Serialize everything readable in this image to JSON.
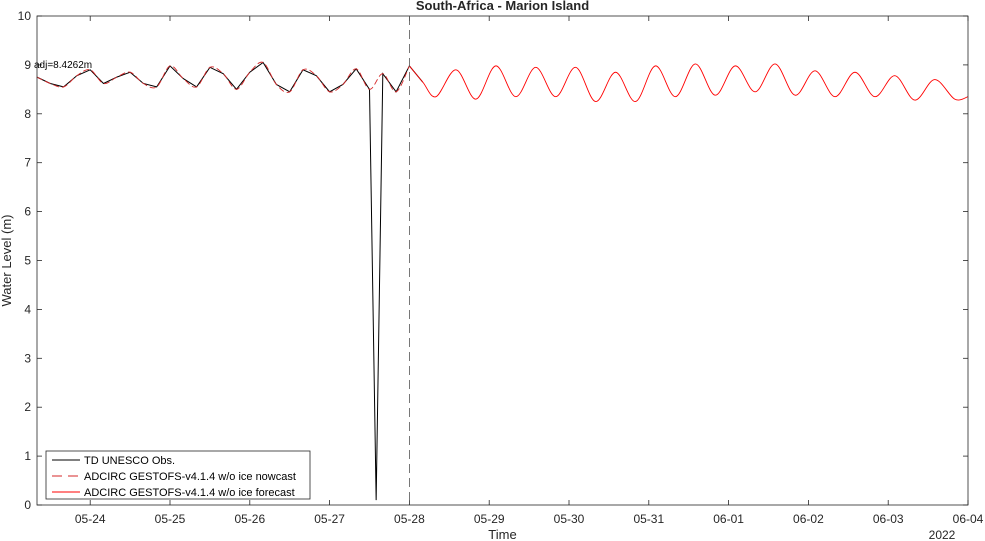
{
  "chart_data": {
    "type": "line",
    "title": "South-Africa - Marion Island",
    "xlabel": "Time",
    "ylabel": "Water Level (m)",
    "ylim": [
      0,
      10
    ],
    "yticks": [
      "0",
      "1",
      "2",
      "3",
      "4",
      "5",
      "6",
      "7",
      "8",
      "9",
      "10"
    ],
    "xlim": [
      "2022-05-23 08:00",
      "2022-06-04 00:00"
    ],
    "xticks": [
      "05-24",
      "05-25",
      "05-26",
      "05-27",
      "05-28",
      "05-29",
      "05-30",
      "05-31",
      "06-01",
      "06-02",
      "06-03",
      "06-04"
    ],
    "x_year_label": "2022",
    "annotation": "adj=8.4262m",
    "nowcast_forecast_boundary": "2022-05-28 00:00",
    "grid": false,
    "legend_position": "bottom-left",
    "series": [
      {
        "name": "TD UNESCO Obs.",
        "color": "#000000",
        "style": "solid",
        "x": [
          "05-23 08:00",
          "05-23 12:00",
          "05-23 16:00",
          "05-23 20:00",
          "05-24 00:00",
          "05-24 04:00",
          "05-24 08:00",
          "05-24 12:00",
          "05-24 16:00",
          "05-24 20:00",
          "05-25 00:00",
          "05-25 04:00",
          "05-25 08:00",
          "05-25 12:00",
          "05-25 16:00",
          "05-25 20:00",
          "05-26 00:00",
          "05-26 04:00",
          "05-26 08:00",
          "05-26 12:00",
          "05-26 16:00",
          "05-26 20:00",
          "05-27 00:00",
          "05-27 04:00",
          "05-27 08:00",
          "05-27 12:00",
          "05-27 14:00",
          "05-27 16:00",
          "05-27 20:00",
          "05-28 00:00",
          "05-28 04:00"
        ],
        "y": [
          8.75,
          8.62,
          8.55,
          8.78,
          8.9,
          8.62,
          8.75,
          8.85,
          8.62,
          8.55,
          8.98,
          8.72,
          8.55,
          8.95,
          8.82,
          8.5,
          8.85,
          9.05,
          8.6,
          8.45,
          8.9,
          8.78,
          8.45,
          8.6,
          8.92,
          8.5,
          0.1,
          8.82,
          8.45,
          8.98,
          8.65
        ]
      },
      {
        "name": "ADCIRC GESTOFS-v4.1.4 w/o ice nowcast",
        "color": "#d62728",
        "style": "dashed",
        "x": [
          "05-23 08:00",
          "05-23 12:00",
          "05-23 16:00",
          "05-23 20:00",
          "05-24 00:00",
          "05-24 04:00",
          "05-24 08:00",
          "05-24 12:00",
          "05-24 16:00",
          "05-24 20:00",
          "05-25 00:00",
          "05-25 04:00",
          "05-25 08:00",
          "05-25 12:00",
          "05-25 16:00",
          "05-25 20:00",
          "05-26 00:00",
          "05-26 04:00",
          "05-26 08:00",
          "05-26 12:00",
          "05-26 16:00",
          "05-26 20:00",
          "05-27 00:00",
          "05-27 04:00",
          "05-27 08:00",
          "05-27 12:00",
          "05-27 16:00",
          "05-27 20:00",
          "05-28 00:00"
        ],
        "y": [
          8.75,
          8.62,
          8.55,
          8.78,
          8.9,
          8.62,
          8.75,
          8.85,
          8.62,
          8.55,
          8.98,
          8.72,
          8.55,
          8.95,
          8.82,
          8.5,
          8.85,
          9.05,
          8.6,
          8.45,
          8.9,
          8.78,
          8.45,
          8.6,
          8.92,
          8.5,
          8.82,
          8.45,
          8.98
        ]
      },
      {
        "name": "ADCIRC GESTOFS-v4.1.4 w/o ice forecast",
        "color": "#ff0000",
        "style": "solid",
        "x": [
          "05-28 00:00",
          "05-28 04:00",
          "05-28 08:00",
          "05-28 14:00",
          "05-28 20:00",
          "05-29 02:00",
          "05-29 08:00",
          "05-29 14:00",
          "05-29 20:00",
          "05-30 02:00",
          "05-30 08:00",
          "05-30 14:00",
          "05-30 20:00",
          "05-31 02:00",
          "05-31 08:00",
          "05-31 14:00",
          "05-31 20:00",
          "06-01 02:00",
          "06-01 08:00",
          "06-01 14:00",
          "06-01 20:00",
          "06-02 02:00",
          "06-02 08:00",
          "06-02 14:00",
          "06-02 20:00",
          "06-03 02:00",
          "06-03 08:00",
          "06-03 14:00",
          "06-03 20:00",
          "06-04 00:00"
        ],
        "y": [
          8.98,
          8.65,
          8.35,
          8.9,
          8.3,
          8.98,
          8.35,
          8.95,
          8.35,
          8.95,
          8.25,
          8.85,
          8.25,
          8.98,
          8.35,
          9.02,
          8.38,
          8.98,
          8.45,
          9.02,
          8.38,
          8.88,
          8.35,
          8.85,
          8.35,
          8.78,
          8.28,
          8.7,
          8.3,
          8.35
        ]
      }
    ]
  }
}
